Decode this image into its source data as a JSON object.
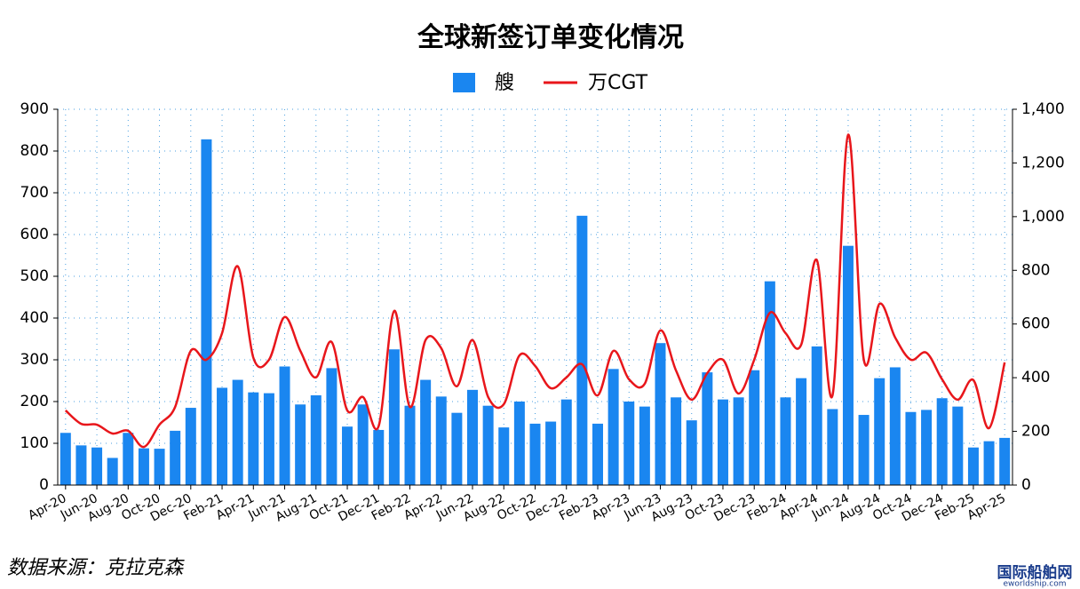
{
  "chart_data": {
    "type": "bar-line",
    "title": "全球新签订单变化情况",
    "categories": [
      "Apr-20",
      null,
      "Jun-20",
      null,
      "Aug-20",
      null,
      "Oct-20",
      null,
      "Dec-20",
      null,
      "Feb-21",
      null,
      "Apr-21",
      null,
      "Jun-21",
      null,
      "Aug-21",
      null,
      "Oct-21",
      null,
      "Dec-21",
      null,
      "Feb-22",
      null,
      "Apr-22",
      null,
      "Jun-22",
      null,
      "Aug-22",
      null,
      "Oct-22",
      null,
      "Dec-22",
      null,
      "Feb-23",
      null,
      "Apr-23",
      null,
      "Jun-23",
      null,
      "Aug-23",
      null,
      "Oct-23",
      null,
      "Dec-23",
      null,
      "Feb-24",
      null,
      "Apr-24",
      null,
      "Jun-24",
      null,
      "Aug-24",
      null,
      "Oct-24",
      null,
      "Dec-24",
      null,
      "Feb-25",
      null,
      "Apr-25"
    ],
    "series": [
      {
        "name": "艘",
        "type": "bar",
        "color": "#1a86f0",
        "values": [
          125,
          95,
          90,
          65,
          125,
          88,
          87,
          130,
          185,
          828,
          233,
          252,
          222,
          220,
          284,
          193,
          215,
          280,
          140,
          193,
          132,
          325,
          190,
          252,
          212,
          173,
          228,
          190,
          138,
          200,
          147,
          152,
          205,
          645,
          147,
          278,
          200,
          188,
          340,
          210,
          155,
          270,
          205,
          210,
          275,
          488,
          210,
          256,
          332,
          182,
          573,
          168,
          256,
          282,
          175,
          180,
          208,
          188,
          90,
          105,
          113
        ]
      },
      {
        "name": "万CGT",
        "type": "line",
        "axis": "y2",
        "color": "#e8161b",
        "values": [
          278,
          228,
          225,
          192,
          202,
          142,
          225,
          291,
          500,
          467,
          566,
          815,
          474,
          467,
          626,
          500,
          401,
          533,
          278,
          328,
          219,
          649,
          291,
          540,
          510,
          368,
          540,
          328,
          301,
          483,
          444,
          361,
          401,
          450,
          334,
          500,
          394,
          377,
          576,
          427,
          318,
          417,
          467,
          341,
          467,
          642,
          566,
          523,
          838,
          334,
          1305,
          467,
          675,
          550,
          467,
          493,
          394,
          318,
          391,
          212,
          457
        ]
      }
    ],
    "ylim": [
      0,
      900
    ],
    "yticks": [
      0,
      100,
      200,
      300,
      400,
      500,
      600,
      700,
      800,
      900
    ],
    "y2lim": [
      0,
      1400
    ],
    "y2ticks": [
      0,
      200,
      400,
      600,
      800,
      {
        "value": 1000,
        "label": "1,000"
      },
      {
        "value": 1200,
        "label": "1,200"
      },
      {
        "value": 1400,
        "label": "1,400"
      }
    ],
    "grid": true,
    "legend": "top",
    "source": "数据来源：克拉克森",
    "watermark": "国际船舶网",
    "watermark_url": "eworldship.com"
  }
}
